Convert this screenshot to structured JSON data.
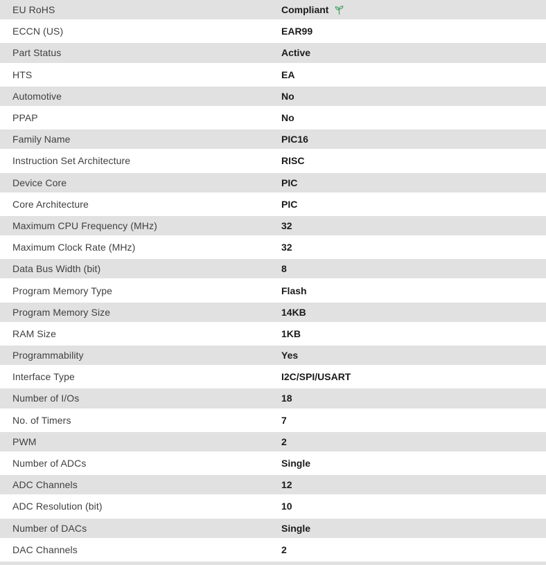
{
  "table": {
    "rows": [
      {
        "label": "EU RoHS",
        "value": "Compliant",
        "icon": "leaf-sprout-icon"
      },
      {
        "label": "ECCN (US)",
        "value": "EAR99"
      },
      {
        "label": "Part Status",
        "value": "Active"
      },
      {
        "label": "HTS",
        "value": "EA"
      },
      {
        "label": "Automotive",
        "value": "No"
      },
      {
        "label": "PPAP",
        "value": "No"
      },
      {
        "label": "Family Name",
        "value": "PIC16"
      },
      {
        "label": "Instruction Set Architecture",
        "value": "RISC"
      },
      {
        "label": "Device Core",
        "value": "PIC"
      },
      {
        "label": "Core Architecture",
        "value": "PIC"
      },
      {
        "label": "Maximum CPU Frequency (MHz)",
        "value": "32"
      },
      {
        "label": "Maximum Clock Rate (MHz)",
        "value": "32"
      },
      {
        "label": "Data Bus Width (bit)",
        "value": "8"
      },
      {
        "label": "Program Memory Type",
        "value": "Flash"
      },
      {
        "label": "Program Memory Size",
        "value": "14KB"
      },
      {
        "label": "RAM Size",
        "value": "1KB"
      },
      {
        "label": "Programmability",
        "value": "Yes"
      },
      {
        "label": "Interface Type",
        "value": "I2C/SPI/USART"
      },
      {
        "label": "Number of I/Os",
        "value": "18"
      },
      {
        "label": "No. of Timers",
        "value": "7"
      },
      {
        "label": "PWM",
        "value": "2"
      },
      {
        "label": "Number of ADCs",
        "value": "Single"
      },
      {
        "label": "ADC Channels",
        "value": "12"
      },
      {
        "label": "ADC Resolution (bit)",
        "value": "10"
      },
      {
        "label": "Number of DACs",
        "value": "Single"
      },
      {
        "label": "DAC Channels",
        "value": "2"
      }
    ],
    "colors": {
      "row_alt_background": "#e1e1e1",
      "label_text": "#3f3f3f",
      "value_text": "#1a1a1a",
      "compliance_green": "#3f9e62"
    }
  }
}
